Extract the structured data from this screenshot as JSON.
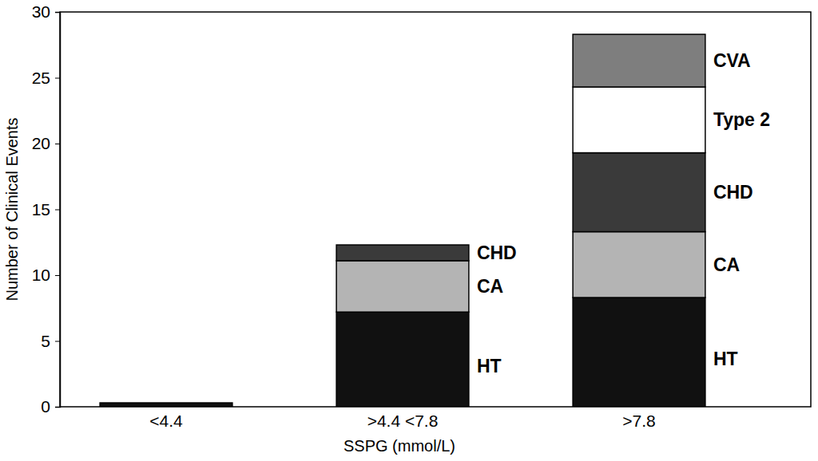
{
  "chart_data": {
    "type": "bar",
    "stacked": true,
    "x_label": "SSPG (mmol/L)",
    "y_label": "Number of Clinical Events",
    "categories": [
      "<4.4",
      ">4.4 <7.8",
      ">7.8"
    ],
    "series": [
      {
        "name": "HT",
        "color": "#111111",
        "values": [
          0.3,
          7.2,
          8.3
        ]
      },
      {
        "name": "CA",
        "color": "#b4b4b4",
        "values": [
          0,
          3.9,
          5.0
        ]
      },
      {
        "name": "CHD",
        "color": "#3a3a3a",
        "values": [
          0,
          1.2,
          6.0
        ]
      },
      {
        "name": "Type 2",
        "color": "#ffffff",
        "values": [
          0,
          0,
          5.0
        ]
      },
      {
        "name": "CVA",
        "color": "#7e7e7e",
        "values": [
          0,
          0,
          4.0
        ]
      }
    ],
    "ylim": [
      0,
      30
    ],
    "yticks": [
      0,
      5,
      10,
      15,
      20,
      25,
      30
    ]
  }
}
